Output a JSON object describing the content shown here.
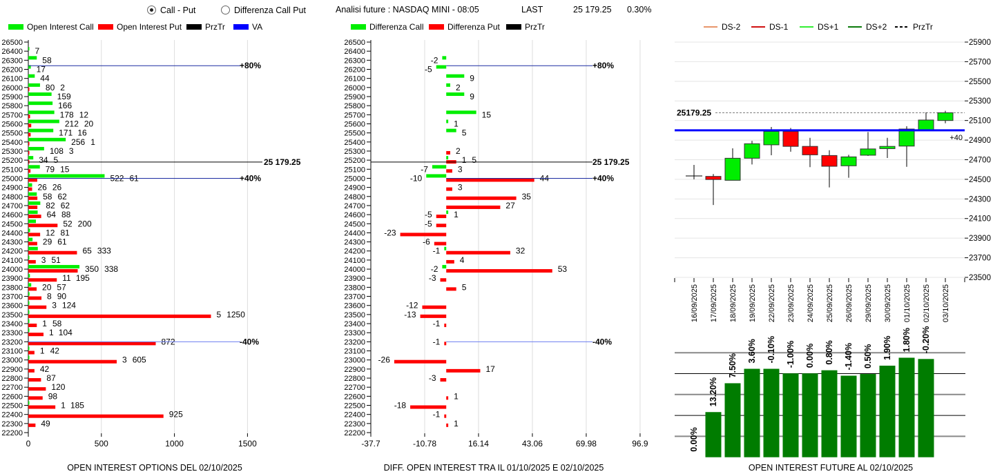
{
  "header": {
    "radio_call_put": "Call - Put",
    "radio_call_put_selected": true,
    "radio_diff": "Differenza Call Put",
    "title": "Analisi future : NASDAQ MINI - 08:05",
    "last_label": "LAST",
    "last_value": "25 179.25",
    "change": "0.30%"
  },
  "colors": {
    "call": "#00ee00",
    "put": "#ff0000",
    "va": "#0000ff",
    "przTr": "#000000",
    "future_bar": "#007c00",
    "ds_minus2": "#e8956a",
    "ds_minus1": "#d01010",
    "ds_plus1": "#33ee33",
    "ds_plus2": "#0a7a0a"
  },
  "chart_data": [
    {
      "type": "bar",
      "orientation": "horizontal",
      "title": "OPEN INTEREST OPTIONS DEL 02/10/2025",
      "legend": [
        "Open Interest Call",
        "Open Interest Put",
        "PrzTr",
        "VA"
      ],
      "legend_position": "top",
      "categories": [
        26500,
        26400,
        26300,
        26200,
        26100,
        26000,
        25900,
        25800,
        25700,
        25600,
        25500,
        25400,
        25300,
        25200,
        25100,
        25000,
        24900,
        24800,
        24700,
        24600,
        24500,
        24400,
        24300,
        24200,
        24100,
        24000,
        23900,
        23800,
        23700,
        23600,
        23500,
        23400,
        23300,
        23200,
        23100,
        23000,
        22900,
        22800,
        22700,
        22600,
        22500,
        22400,
        22300,
        22200
      ],
      "series": [
        {
          "name": "Open Interest Call",
          "values": [
            0,
            7,
            58,
            17,
            44,
            80,
            159,
            166,
            178,
            212,
            171,
            256,
            108,
            34,
            79,
            522,
            26,
            58,
            82,
            64,
            52,
            12,
            29,
            65,
            3,
            350,
            11,
            20,
            8,
            3,
            5,
            1,
            1,
            0,
            1,
            3,
            0,
            0,
            0,
            0,
            1,
            0,
            0,
            0
          ]
        },
        {
          "name": "Open Interest Put",
          "values": [
            0,
            0,
            0,
            0,
            0,
            2,
            0,
            0,
            12,
            20,
            16,
            1,
            3,
            5,
            15,
            61,
            26,
            62,
            62,
            88,
            200,
            81,
            61,
            333,
            51,
            338,
            195,
            57,
            90,
            124,
            1250,
            58,
            104,
            872,
            42,
            605,
            42,
            87,
            120,
            98,
            185,
            925,
            49,
            0
          ]
        }
      ],
      "xlim": [
        0,
        1650
      ],
      "xticks": [
        "0",
        "500",
        "1000",
        "1500"
      ],
      "grid": true,
      "reference_lines": [
        {
          "label": "+80%",
          "strike": 26240,
          "kind": "VA"
        },
        {
          "label": "25 179.25",
          "strike": 25179.25,
          "kind": "PrzTr"
        },
        {
          "label": "+40%",
          "strike": 25000,
          "kind": "VA"
        },
        {
          "label": "-40%",
          "strike": 23200,
          "kind": "VA"
        }
      ]
    },
    {
      "type": "bar",
      "orientation": "horizontal",
      "title": "DIFF. OPEN INTEREST TRA IL 01/10/2025 E 02/10/2025",
      "legend": [
        "Differenza Call",
        "Differenza Put",
        "PrzTr"
      ],
      "legend_position": "top",
      "categories": [
        26500,
        26400,
        26300,
        26200,
        26100,
        26000,
        25900,
        25800,
        25700,
        25600,
        25500,
        25400,
        25300,
        25200,
        25100,
        25000,
        24900,
        24800,
        24700,
        24600,
        24500,
        24400,
        24300,
        24200,
        24100,
        24000,
        23900,
        23800,
        23700,
        23600,
        23500,
        23400,
        23300,
        23200,
        23100,
        23000,
        22900,
        22800,
        22700,
        22600,
        22500,
        22400,
        22300,
        22200
      ],
      "series": [
        {
          "name": "Differenza Call",
          "values": [
            null,
            null,
            -2,
            -5,
            9,
            2,
            9,
            null,
            15,
            1,
            5,
            null,
            null,
            1,
            -7,
            -10,
            null,
            null,
            null,
            1,
            null,
            null,
            null,
            -1,
            null,
            -2,
            null,
            null,
            null,
            null,
            null,
            null,
            null,
            null,
            null,
            null,
            null,
            null,
            null,
            null,
            null,
            null,
            null,
            null
          ]
        },
        {
          "name": "Differenza Put",
          "values": [
            null,
            null,
            null,
            null,
            null,
            null,
            null,
            null,
            null,
            null,
            null,
            null,
            2,
            5,
            3,
            44,
            3,
            35,
            27,
            -5,
            -5,
            -23,
            -6,
            32,
            4,
            53,
            -3,
            5,
            null,
            -12,
            -13,
            -1,
            null,
            -1,
            null,
            -26,
            17,
            -3,
            null,
            1,
            -18,
            -1,
            1,
            null
          ]
        }
      ],
      "xlim": [
        -37.7,
        96.9
      ],
      "xticks": [
        "-37.7",
        "-10.78",
        "16.14",
        "43.06",
        "69.98",
        "96.9"
      ],
      "grid": true,
      "reference_lines": [
        {
          "label": "+80%",
          "strike": 26240,
          "kind": "VA"
        },
        {
          "label": "25 179.25",
          "strike": 25179.25,
          "kind": "PrzTr"
        },
        {
          "label": "+40%",
          "strike": 25000,
          "kind": "VA"
        },
        {
          "label": "-40%",
          "strike": 23200,
          "kind": "VA"
        }
      ]
    },
    {
      "type": "candlestick",
      "legend": [
        "DS-2",
        "DS-1",
        "DS+1",
        "DS+2",
        "PrzTr"
      ],
      "legend_position": "top",
      "categories": [
        "16/09/2025",
        "17/09/2025",
        "18/09/2025",
        "19/09/2025",
        "22/09/2025",
        "23/09/2025",
        "24/09/2025",
        "25/09/2025",
        "26/09/2025",
        "29/09/2025",
        "30/09/2025",
        "01/10/2025",
        "02/10/2025",
        "03/10/2025"
      ],
      "open": [
        24535,
        24530,
        24490,
        24715,
        24852,
        24989,
        24836,
        24743,
        24638,
        24746,
        24813,
        24839,
        25006,
        25100
      ],
      "high": [
        24647,
        24554,
        24816,
        24893,
        25034,
        25024,
        24923,
        24797,
        24750,
        24982,
        24923,
        25041,
        25183,
        25199
      ],
      "low": [
        24500,
        24238,
        24490,
        24652,
        24746,
        24782,
        24624,
        24418,
        24516,
        24739,
        24718,
        24628,
        25006,
        25072
      ],
      "close": [
        24535,
        24498,
        24715,
        24863,
        24989,
        24836,
        24750,
        24633,
        24729,
        24810,
        24836,
        25013,
        25105,
        25179.25
      ],
      "ylim": [
        23500,
        25900
      ],
      "yticks": [
        "25900",
        "25700",
        "25500",
        "25300",
        "25100",
        "24900",
        "24700",
        "24500",
        "24300",
        "24100",
        "23900",
        "23700",
        "23500"
      ],
      "price_label": "25179.25",
      "price": 25179.25,
      "va_line": {
        "value": 25000,
        "label": "+40"
      },
      "grid": true
    },
    {
      "type": "bar",
      "title": "OPEN INTEREST FUTURE AL 02/10/2025",
      "categories": [
        "16/09/2025",
        "17/09/2025",
        "18/09/2025",
        "19/09/2025",
        "22/09/2025",
        "23/09/2025",
        "24/09/2025",
        "25/09/2025",
        "26/09/2025",
        "29/09/2025",
        "30/09/2025",
        "01/10/2025",
        "02/10/2025"
      ],
      "values": [
        0,
        2.16,
        3.54,
        4.23,
        4.23,
        4.01,
        4.01,
        4.16,
        3.9,
        3.98,
        4.38,
        4.76,
        4.7
      ],
      "data_labels": [
        "0.00%",
        "13.20%",
        "7.50%",
        "3.60%",
        "-0.10%",
        "-1.00%",
        "0.00%",
        "0.80%",
        "-1.40%",
        "0.50%",
        "1.90%",
        "1.80%",
        "-0.20%"
      ],
      "ylim": [
        0,
        5
      ],
      "grid": true
    }
  ]
}
